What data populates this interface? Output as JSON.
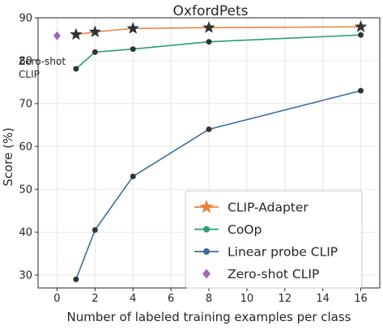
{
  "chart_data": {
    "type": "line",
    "title": "OxfordPets",
    "xlabel": "Number of labeled training examples per class",
    "ylabel": "Score (%)",
    "xlim": [
      -1,
      17
    ],
    "ylim": [
      27,
      90
    ],
    "xticks": [
      0,
      2,
      4,
      6,
      8,
      10,
      12,
      14,
      16
    ],
    "yticks": [
      30,
      40,
      50,
      60,
      70,
      80,
      90
    ],
    "grid": true,
    "legend_position": "lower-right",
    "series": [
      {
        "name": "CLIP-Adapter",
        "color": "#e8823a",
        "marker": "star",
        "x": [
          1,
          2,
          4,
          8,
          16
        ],
        "values": [
          86.1,
          86.7,
          87.5,
          87.7,
          87.9
        ]
      },
      {
        "name": "CoOp",
        "color": "#2a9d7c",
        "marker": "circle",
        "x": [
          1,
          2,
          4,
          8,
          16
        ],
        "values": [
          78.1,
          82.0,
          82.7,
          84.4,
          86.0
        ]
      },
      {
        "name": "Linear probe CLIP",
        "color": "#3b6d9e",
        "marker": "circle",
        "x": [
          1,
          2,
          4,
          8,
          16
        ],
        "values": [
          29.0,
          40.5,
          53.0,
          64.0,
          73.0
        ]
      },
      {
        "name": "Zero-shot CLIP",
        "color": "#9b6bb5",
        "marker": "diamond",
        "x": [
          0
        ],
        "values": [
          85.8
        ]
      }
    ],
    "annotations": [
      {
        "text_lines": [
          "Zero-shot",
          "CLIP"
        ]
      }
    ]
  }
}
